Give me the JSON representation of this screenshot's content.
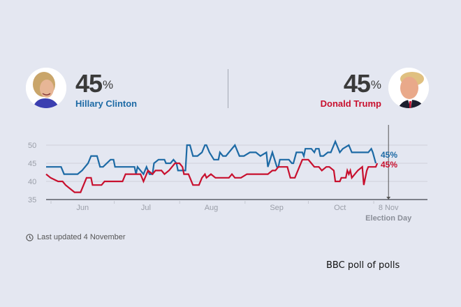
{
  "candidates": {
    "left": {
      "name": "Hillary Clinton",
      "percent": "45",
      "percent_sign": "%",
      "color": "#1d6aa5"
    },
    "right": {
      "name": "Donald Trump",
      "percent": "45",
      "percent_sign": "%",
      "color": "#c8102e"
    }
  },
  "footer": {
    "updated_label": "Last updated 4 November",
    "caption": "BBC poll of polls"
  },
  "chart_data": {
    "type": "line",
    "title": "",
    "xlabel": "",
    "ylabel": "",
    "ylim": [
      35,
      50
    ],
    "yticks": [
      35,
      40,
      45,
      50
    ],
    "grid": true,
    "x_unit": "days since 1 Jun",
    "xlim": [
      -2,
      180
    ],
    "xticks": [
      {
        "label": "Jun",
        "day": 15
      },
      {
        "label": "Jul",
        "day": 45
      },
      {
        "label": "Aug",
        "day": 76
      },
      {
        "label": "Sep",
        "day": 107
      },
      {
        "label": "Oct",
        "day": 137
      },
      {
        "label": "8 Nov",
        "day": 160
      }
    ],
    "month_boundaries": [
      0,
      30,
      61,
      92,
      122,
      153
    ],
    "marker": {
      "label": "Election Day",
      "day": 160
    },
    "series": [
      {
        "name": "Clinton",
        "color": "#1d6aa5",
        "end_label": "45%",
        "points": [
          [
            -2,
            44
          ],
          [
            8,
            44
          ],
          [
            10,
            42
          ],
          [
            19,
            42
          ],
          [
            22,
            43
          ],
          [
            26,
            45
          ],
          [
            28,
            47
          ],
          [
            32,
            47
          ],
          [
            34,
            44
          ],
          [
            36,
            44
          ],
          [
            41,
            46
          ],
          [
            43,
            46
          ],
          [
            44,
            44
          ],
          [
            50,
            44
          ],
          [
            54,
            44
          ],
          [
            57,
            44
          ],
          [
            58,
            42
          ],
          [
            59,
            44
          ],
          [
            61,
            43
          ],
          [
            63,
            42
          ],
          [
            65,
            44
          ],
          [
            67,
            42
          ],
          [
            69,
            42
          ],
          [
            70,
            45
          ],
          [
            73,
            46
          ],
          [
            77,
            46
          ],
          [
            78,
            45
          ],
          [
            81,
            45
          ],
          [
            83,
            46
          ],
          [
            85,
            45
          ],
          [
            86,
            43
          ],
          [
            89,
            43
          ],
          [
            91,
            43
          ],
          [
            92,
            50
          ],
          [
            94,
            50
          ],
          [
            96,
            47
          ],
          [
            99,
            47
          ],
          [
            102,
            48
          ],
          [
            104,
            50
          ],
          [
            105,
            50
          ],
          [
            107,
            48
          ],
          [
            110,
            46
          ],
          [
            113,
            46
          ],
          [
            114,
            48
          ],
          [
            116,
            47
          ],
          [
            118,
            47
          ],
          [
            124,
            50
          ],
          [
            127,
            47
          ],
          [
            130,
            47
          ],
          [
            134,
            48
          ],
          [
            138,
            48
          ],
          [
            141,
            47
          ],
          [
            145,
            48
          ],
          [
            146,
            44
          ],
          [
            149,
            48
          ],
          [
            152,
            44
          ],
          [
            153,
            44
          ],
          [
            154,
            46
          ],
          [
            160,
            46
          ],
          [
            162,
            45
          ],
          [
            163,
            45
          ],
          [
            165,
            48
          ],
          [
            169,
            48
          ],
          [
            170,
            47
          ],
          [
            171,
            49
          ],
          [
            175,
            49
          ],
          [
            177,
            48
          ],
          [
            178,
            49
          ],
          [
            180,
            49
          ],
          [
            181,
            47
          ],
          [
            183,
            47
          ],
          [
            186,
            48
          ],
          [
            188,
            48
          ],
          [
            191,
            51
          ],
          [
            194,
            48
          ],
          [
            196,
            49
          ],
          [
            200,
            50
          ],
          [
            202,
            48
          ],
          [
            207,
            48
          ],
          [
            209,
            48
          ],
          [
            213,
            48
          ],
          [
            215,
            49
          ],
          [
            216,
            48
          ],
          [
            218,
            45
          ]
        ]
      },
      {
        "name": "Trump",
        "color": "#c8102e",
        "end_label": "45%",
        "points": [
          [
            -2,
            42
          ],
          [
            1,
            41
          ],
          [
            6,
            40
          ],
          [
            9,
            40
          ],
          [
            11,
            39
          ],
          [
            17,
            37
          ],
          [
            21,
            37
          ],
          [
            25,
            41
          ],
          [
            28,
            41
          ],
          [
            29,
            39
          ],
          [
            35,
            39
          ],
          [
            37,
            40
          ],
          [
            44,
            40
          ],
          [
            49,
            40
          ],
          [
            51,
            42
          ],
          [
            55,
            42
          ],
          [
            59,
            42
          ],
          [
            61,
            42
          ],
          [
            63,
            40
          ],
          [
            64,
            41
          ],
          [
            66,
            43
          ],
          [
            69,
            42
          ],
          [
            71,
            43
          ],
          [
            75,
            43
          ],
          [
            77,
            42
          ],
          [
            80,
            43
          ],
          [
            82,
            44
          ],
          [
            84,
            45
          ],
          [
            87,
            45
          ],
          [
            89,
            44
          ],
          [
            90,
            42
          ],
          [
            91,
            42
          ],
          [
            92,
            42
          ],
          [
            93,
            42
          ],
          [
            94,
            41
          ],
          [
            96,
            39
          ],
          [
            100,
            39
          ],
          [
            102,
            41
          ],
          [
            104,
            42
          ],
          [
            105,
            41
          ],
          [
            108,
            42
          ],
          [
            111,
            41
          ],
          [
            120,
            41
          ],
          [
            122,
            42
          ],
          [
            124,
            41
          ],
          [
            128,
            41
          ],
          [
            132,
            42
          ],
          [
            140,
            42
          ],
          [
            144,
            42
          ],
          [
            146,
            42
          ],
          [
            149,
            43
          ],
          [
            151,
            43
          ],
          [
            153,
            44
          ],
          [
            159,
            44
          ],
          [
            161,
            41
          ],
          [
            164,
            41
          ],
          [
            167,
            44
          ],
          [
            169,
            46
          ],
          [
            173,
            46
          ],
          [
            175,
            45
          ],
          [
            177,
            44
          ],
          [
            180,
            44
          ],
          [
            182,
            43
          ],
          [
            185,
            44
          ],
          [
            187,
            44
          ],
          [
            190,
            43
          ],
          [
            191,
            40
          ],
          [
            194,
            40
          ],
          [
            195,
            41
          ],
          [
            198,
            41
          ],
          [
            199,
            43
          ],
          [
            200,
            42
          ],
          [
            201,
            43
          ],
          [
            202,
            41
          ],
          [
            206,
            43
          ],
          [
            209,
            44
          ],
          [
            210,
            39
          ],
          [
            212,
            43
          ],
          [
            213,
            44
          ],
          [
            218,
            44
          ],
          [
            219,
            45
          ]
        ]
      }
    ]
  }
}
